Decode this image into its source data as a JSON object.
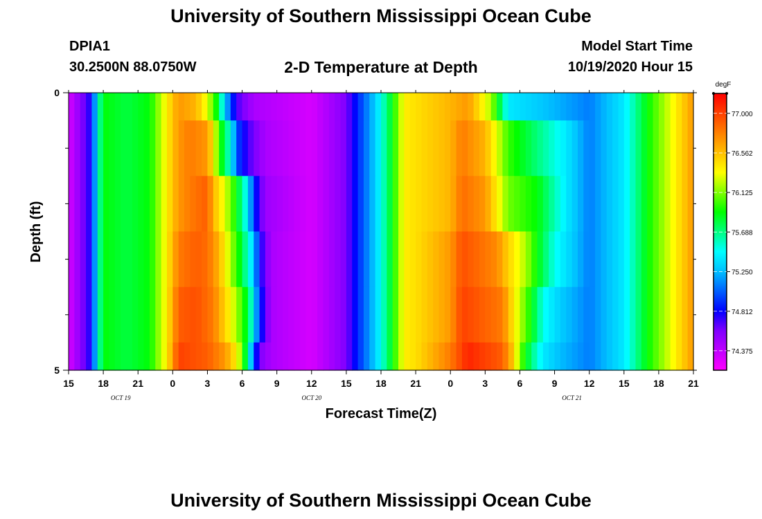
{
  "header": {
    "title": "University of Southern Mississippi Ocean Cube",
    "station": "DPIA1",
    "coordinates": "30.2500N 88.0750W",
    "plot_title": "2-D Temperature at Depth",
    "start_label": "Model Start Time",
    "start_value": "10/19/2020 Hour 15"
  },
  "footer": {
    "title": "University of Southern Mississippi Ocean Cube"
  },
  "chart_data": {
    "type": "heatmap",
    "title": "2-D Temperature at Depth",
    "xlabel": "Forecast Time(Z)",
    "ylabel": "Depth (ft)",
    "x_range_hours": [
      0,
      54
    ],
    "y_range": [
      0,
      5
    ],
    "x_ticks": [
      {
        "hour": 0,
        "label": "15"
      },
      {
        "hour": 3,
        "label": "18"
      },
      {
        "hour": 6,
        "label": "21"
      },
      {
        "hour": 9,
        "label": "0"
      },
      {
        "hour": 12,
        "label": "3"
      },
      {
        "hour": 15,
        "label": "6"
      },
      {
        "hour": 18,
        "label": "9"
      },
      {
        "hour": 21,
        "label": "12"
      },
      {
        "hour": 24,
        "label": "15"
      },
      {
        "hour": 27,
        "label": "18"
      },
      {
        "hour": 30,
        "label": "21"
      },
      {
        "hour": 33,
        "label": "0"
      },
      {
        "hour": 36,
        "label": "3"
      },
      {
        "hour": 39,
        "label": "6"
      },
      {
        "hour": 42,
        "label": "9"
      },
      {
        "hour": 45,
        "label": "12"
      },
      {
        "hour": 48,
        "label": "15"
      },
      {
        "hour": 51,
        "label": "18"
      },
      {
        "hour": 54,
        "label": "21"
      }
    ],
    "date_labels": [
      {
        "hour": 4.5,
        "label": "OCT 19"
      },
      {
        "hour": 21,
        "label": "OCT 20"
      },
      {
        "hour": 43.5,
        "label": "OCT 21"
      }
    ],
    "y_ticks": [
      {
        "value": 0,
        "label": "0"
      },
      {
        "value": 5,
        "label": "5"
      }
    ],
    "y_minor_ticks": [
      1,
      2,
      3,
      4
    ],
    "colorbar": {
      "unit": "degF",
      "min": 74.16,
      "max": 77.22,
      "tick_values": [
        74.375,
        74.812,
        75.25,
        75.688,
        76.125,
        76.562,
        77.0
      ],
      "tick_labels": [
        "74.375",
        "74.812",
        "75.250",
        "75.688",
        "76.125",
        "76.562",
        "77.000"
      ],
      "colors": [
        "#ff00ff",
        "#bf00ff",
        "#8000ff",
        "#0000ff",
        "#0060ff",
        "#00bfff",
        "#00ffff",
        "#00ff80",
        "#00ff00",
        "#80ff00",
        "#ffff00",
        "#ffbf00",
        "#ff8000",
        "#ff4000",
        "#ff0000"
      ]
    },
    "layers": [
      {
        "depth_range": [
          0,
          0.5
        ],
        "segments": [
          [
            0,
            74.3
          ],
          [
            2,
            74.8
          ],
          [
            2.5,
            75.5
          ],
          [
            3,
            75.9
          ],
          [
            5,
            75.8
          ],
          [
            7,
            75.9
          ],
          [
            8.5,
            76.4
          ],
          [
            9.5,
            76.7
          ],
          [
            11,
            76.6
          ],
          [
            12,
            76.3
          ],
          [
            13,
            75.8
          ],
          [
            13.5,
            75.3
          ],
          [
            14.5,
            74.7
          ],
          [
            16,
            74.45
          ],
          [
            21,
            74.3
          ],
          [
            24,
            74.6
          ],
          [
            25,
            74.9
          ],
          [
            26.5,
            75.3
          ],
          [
            28,
            75.9
          ],
          [
            29,
            76.4
          ],
          [
            30,
            76.45
          ],
          [
            33,
            76.6
          ],
          [
            34.5,
            76.7
          ],
          [
            36.5,
            76.2
          ],
          [
            38,
            75.4
          ],
          [
            40.5,
            75.3
          ],
          [
            45,
            75.1
          ],
          [
            48,
            75.4
          ],
          [
            50,
            75.9
          ],
          [
            52.5,
            76.4
          ],
          [
            54,
            76.7
          ]
        ]
      },
      {
        "depth_range": [
          0.5,
          1.5
        ],
        "segments": [
          [
            0,
            74.3
          ],
          [
            2,
            74.8
          ],
          [
            2.5,
            75.5
          ],
          [
            3,
            75.9
          ],
          [
            5,
            75.8
          ],
          [
            7,
            75.9
          ],
          [
            8.5,
            76.4
          ],
          [
            9.5,
            76.7
          ],
          [
            10.5,
            76.8
          ],
          [
            12,
            76.7
          ],
          [
            12.5,
            76.4
          ],
          [
            13,
            76.0
          ],
          [
            14,
            75.5
          ],
          [
            14.5,
            75.0
          ],
          [
            15.5,
            74.7
          ],
          [
            17,
            74.45
          ],
          [
            21,
            74.3
          ],
          [
            24,
            74.6
          ],
          [
            25,
            74.9
          ],
          [
            26.5,
            75.3
          ],
          [
            28,
            75.9
          ],
          [
            29,
            76.4
          ],
          [
            30,
            76.45
          ],
          [
            33,
            76.6
          ],
          [
            34,
            76.8
          ],
          [
            36,
            76.6
          ],
          [
            37,
            76.3
          ],
          [
            38,
            76.0
          ],
          [
            43,
            75.4
          ],
          [
            45,
            75.1
          ],
          [
            48,
            75.4
          ],
          [
            50,
            75.9
          ],
          [
            52.5,
            76.4
          ],
          [
            54,
            76.7
          ]
        ]
      },
      {
        "depth_range": [
          1.5,
          2.5
        ],
        "segments": [
          [
            0,
            74.3
          ],
          [
            2,
            74.8
          ],
          [
            2.5,
            75.5
          ],
          [
            3,
            75.9
          ],
          [
            5,
            75.8
          ],
          [
            7,
            75.9
          ],
          [
            8.5,
            76.4
          ],
          [
            9.5,
            76.7
          ],
          [
            10.5,
            76.8
          ],
          [
            12,
            76.9
          ],
          [
            12.5,
            76.6
          ],
          [
            13.5,
            76.3
          ],
          [
            14.5,
            75.9
          ],
          [
            15.5,
            75.4
          ],
          [
            16,
            74.9
          ],
          [
            17,
            74.5
          ],
          [
            21,
            74.3
          ],
          [
            24,
            74.6
          ],
          [
            25,
            74.9
          ],
          [
            26.5,
            75.3
          ],
          [
            28,
            75.9
          ],
          [
            29,
            76.4
          ],
          [
            30,
            76.45
          ],
          [
            33,
            76.6
          ],
          [
            34,
            76.85
          ],
          [
            36,
            76.7
          ],
          [
            37,
            76.4
          ],
          [
            38,
            76.1
          ],
          [
            40.5,
            75.9
          ],
          [
            43,
            75.4
          ],
          [
            45,
            75.1
          ],
          [
            48,
            75.4
          ],
          [
            50,
            75.9
          ],
          [
            52.5,
            76.4
          ],
          [
            54,
            76.7
          ]
        ]
      },
      {
        "depth_range": [
          2.5,
          3.5
        ],
        "segments": [
          [
            0,
            74.3
          ],
          [
            2,
            74.8
          ],
          [
            2.5,
            75.5
          ],
          [
            3,
            75.9
          ],
          [
            5,
            75.8
          ],
          [
            7,
            75.9
          ],
          [
            8.5,
            76.4
          ],
          [
            9.5,
            76.8
          ],
          [
            11,
            76.9
          ],
          [
            12,
            76.85
          ],
          [
            13,
            76.6
          ],
          [
            14,
            76.2
          ],
          [
            15,
            75.8
          ],
          [
            16,
            75.3
          ],
          [
            16.5,
            74.8
          ],
          [
            17.5,
            74.45
          ],
          [
            21,
            74.3
          ],
          [
            24,
            74.6
          ],
          [
            25,
            74.9
          ],
          [
            26.5,
            75.3
          ],
          [
            28,
            75.9
          ],
          [
            29,
            76.4
          ],
          [
            30,
            76.45
          ],
          [
            33,
            76.7
          ],
          [
            34,
            76.95
          ],
          [
            37,
            76.75
          ],
          [
            38,
            76.5
          ],
          [
            39.5,
            76.2
          ],
          [
            40.5,
            75.9
          ],
          [
            42,
            75.5
          ],
          [
            43.5,
            75.3
          ],
          [
            45,
            75.1
          ],
          [
            48,
            75.4
          ],
          [
            50,
            75.9
          ],
          [
            52.5,
            76.4
          ],
          [
            54,
            76.7
          ]
        ]
      },
      {
        "depth_range": [
          3.5,
          4.5
        ],
        "segments": [
          [
            0,
            74.3
          ],
          [
            2,
            74.8
          ],
          [
            2.5,
            75.5
          ],
          [
            3,
            75.9
          ],
          [
            5,
            75.8
          ],
          [
            7,
            75.9
          ],
          [
            8.5,
            76.4
          ],
          [
            9.5,
            76.9
          ],
          [
            11,
            76.95
          ],
          [
            12.5,
            76.8
          ],
          [
            13.5,
            76.5
          ],
          [
            14.5,
            76.2
          ],
          [
            15.5,
            75.8
          ],
          [
            16,
            75.4
          ],
          [
            16.5,
            74.9
          ],
          [
            17.5,
            74.45
          ],
          [
            21,
            74.3
          ],
          [
            24,
            74.6
          ],
          [
            25,
            74.9
          ],
          [
            26.5,
            75.3
          ],
          [
            28,
            75.9
          ],
          [
            29,
            76.4
          ],
          [
            30,
            76.45
          ],
          [
            33,
            76.7
          ],
          [
            34,
            77.0
          ],
          [
            37.5,
            76.8
          ],
          [
            38.5,
            76.4
          ],
          [
            40,
            75.9
          ],
          [
            41,
            75.5
          ],
          [
            42.5,
            75.3
          ],
          [
            45,
            75.1
          ],
          [
            48,
            75.4
          ],
          [
            50,
            75.9
          ],
          [
            52.5,
            76.4
          ],
          [
            54,
            76.7
          ]
        ]
      },
      {
        "depth_range": [
          4.5,
          5
        ],
        "segments": [
          [
            0,
            74.3
          ],
          [
            2,
            74.8
          ],
          [
            2.5,
            75.5
          ],
          [
            3,
            75.9
          ],
          [
            5,
            75.8
          ],
          [
            7,
            75.9
          ],
          [
            8.5,
            76.4
          ],
          [
            9.5,
            77.0
          ],
          [
            12,
            76.9
          ],
          [
            13.5,
            76.7
          ],
          [
            14.5,
            76.4
          ],
          [
            15,
            76.1
          ],
          [
            15.5,
            75.6
          ],
          [
            16,
            75.0
          ],
          [
            16.5,
            74.6
          ],
          [
            17.5,
            74.45
          ],
          [
            21,
            74.3
          ],
          [
            24,
            74.6
          ],
          [
            25,
            74.9
          ],
          [
            26.5,
            75.3
          ],
          [
            28,
            75.9
          ],
          [
            29,
            76.4
          ],
          [
            30,
            76.45
          ],
          [
            33,
            76.8
          ],
          [
            34.5,
            77.1
          ],
          [
            37.5,
            76.9
          ],
          [
            38.5,
            76.5
          ],
          [
            39,
            76.1
          ],
          [
            40,
            75.7
          ],
          [
            41,
            75.4
          ],
          [
            42.5,
            75.25
          ],
          [
            45,
            75.1
          ],
          [
            48,
            75.4
          ],
          [
            50,
            75.9
          ],
          [
            52.5,
            76.4
          ],
          [
            54,
            76.7
          ]
        ]
      }
    ]
  }
}
